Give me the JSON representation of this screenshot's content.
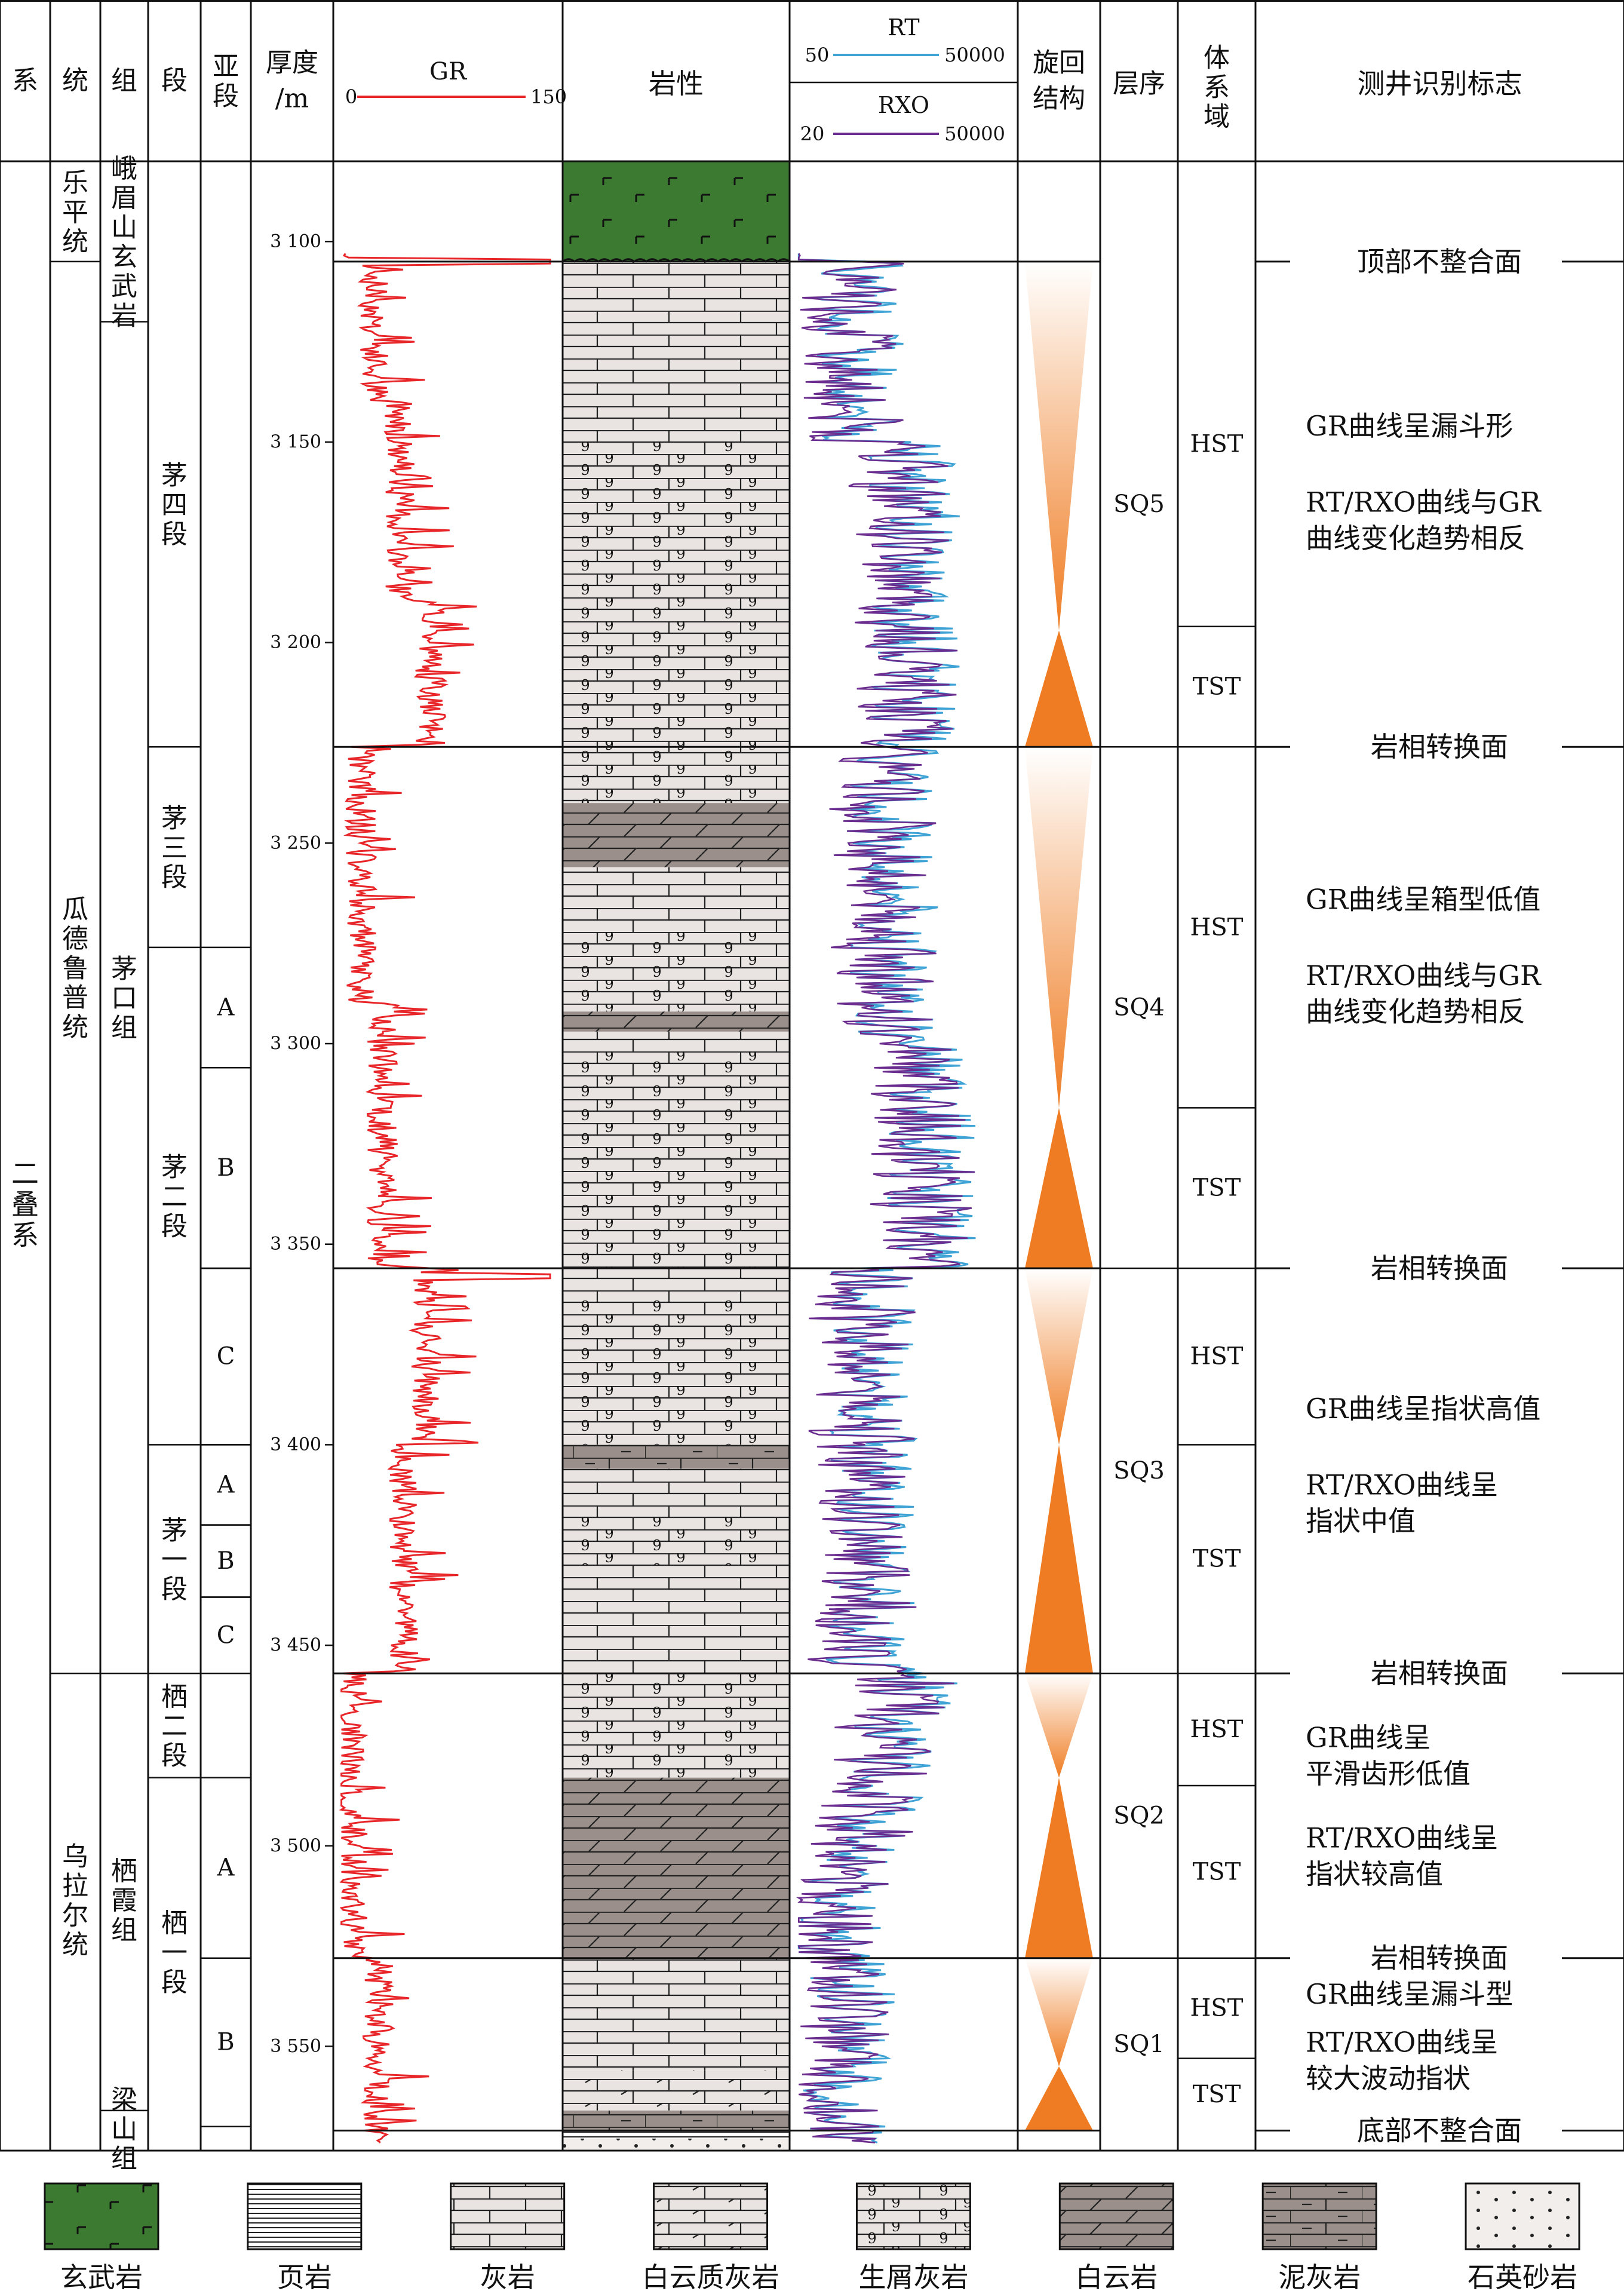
{
  "headers": {
    "system": "系",
    "series": "统",
    "formation": "组",
    "member": "段",
    "submember": "亚段",
    "thickness": "厚度/m",
    "gr": {
      "name": "GR",
      "min": "0",
      "max": "150"
    },
    "lithology": "岩性",
    "rt": {
      "name": "RT",
      "min": "50",
      "max": "50000"
    },
    "rxo": {
      "name": "RXO",
      "min": "20",
      "max": "50000"
    },
    "cycle": "旋回结构",
    "sequence": "层序",
    "systems_tract": "体系域",
    "log_markers": "测井识别标志"
  },
  "system_name": "二叠系",
  "series_units": [
    {
      "name": "乐平统",
      "top": 3080,
      "bottom": 3105
    },
    {
      "name": "瓜德鲁普统",
      "top": 3105,
      "bottom": 3457
    },
    {
      "name": "乌拉尔统",
      "top": 3457,
      "bottom": 3570
    }
  ],
  "formation_units": [
    {
      "name": "峨眉山玄武岩",
      "top": 3080,
      "bottom": 3120
    },
    {
      "name": "茅口组",
      "top": 3120,
      "bottom": 3457
    },
    {
      "name": "栖霞组",
      "top": 3457,
      "bottom": 3570
    },
    {
      "name": "梁山组",
      "top": 3566,
      "bottom": 3575
    }
  ],
  "member_units": [
    {
      "name": "茅四段",
      "top": 3105,
      "bottom": 3226
    },
    {
      "name": "茅三段",
      "top": 3226,
      "bottom": 3276
    },
    {
      "name": "茅二段",
      "top": 3276,
      "bottom": 3400
    },
    {
      "name": "茅一段",
      "top": 3400,
      "bottom": 3457
    },
    {
      "name": "栖二段",
      "top": 3457,
      "bottom": 3483
    },
    {
      "name": "栖一段",
      "top": 3483,
      "bottom": 3570
    }
  ],
  "submember_units": [
    {
      "name": "A",
      "top": 3276,
      "bottom": 3306
    },
    {
      "name": "B",
      "top": 3306,
      "bottom": 3356
    },
    {
      "name": "C",
      "top": 3356,
      "bottom": 3400
    },
    {
      "name": "A",
      "top": 3400,
      "bottom": 3420
    },
    {
      "name": "B",
      "top": 3420,
      "bottom": 3438
    },
    {
      "name": "C",
      "top": 3438,
      "bottom": 3457
    },
    {
      "name": "A",
      "top": 3483,
      "bottom": 3528
    },
    {
      "name": "B",
      "top": 3528,
      "bottom": 3570
    }
  ],
  "depth_ticks": [
    {
      "depth": 3100,
      "label": "3 100"
    },
    {
      "depth": 3150,
      "label": "3 150"
    },
    {
      "depth": 3200,
      "label": "3 200"
    },
    {
      "depth": 3250,
      "label": "3 250"
    },
    {
      "depth": 3300,
      "label": "3 300"
    },
    {
      "depth": 3350,
      "label": "3 350"
    },
    {
      "depth": 3400,
      "label": "3 400"
    },
    {
      "depth": 3450,
      "label": "3 450"
    },
    {
      "depth": 3500,
      "label": "3 500"
    },
    {
      "depth": 3550,
      "label": "3 550"
    }
  ],
  "lithology_intervals": [
    {
      "type": "basalt",
      "top": 3080,
      "bottom": 3105
    },
    {
      "type": "limestone",
      "top": 3105,
      "bottom": 3150
    },
    {
      "type": "bioclastic",
      "top": 3150,
      "bottom": 3240
    },
    {
      "type": "dolomite",
      "top": 3240,
      "bottom": 3256
    },
    {
      "type": "limestone",
      "top": 3256,
      "bottom": 3272
    },
    {
      "type": "bioclastic",
      "top": 3272,
      "bottom": 3292
    },
    {
      "type": "dolomite",
      "top": 3292,
      "bottom": 3297
    },
    {
      "type": "limestone",
      "top": 3297,
      "bottom": 3302
    },
    {
      "type": "bioclastic",
      "top": 3302,
      "bottom": 3356
    },
    {
      "type": "limestone",
      "top": 3356,
      "bottom": 3364
    },
    {
      "type": "bioclastic",
      "top": 3364,
      "bottom": 3400
    },
    {
      "type": "marl",
      "top": 3400,
      "bottom": 3406
    },
    {
      "type": "limestone",
      "top": 3406,
      "bottom": 3418
    },
    {
      "type": "bioclastic",
      "top": 3418,
      "bottom": 3430
    },
    {
      "type": "limestone",
      "top": 3430,
      "bottom": 3457
    },
    {
      "type": "bioclastic",
      "top": 3457,
      "bottom": 3483
    },
    {
      "type": "dolomite",
      "top": 3483,
      "bottom": 3528
    },
    {
      "type": "limestone",
      "top": 3528,
      "bottom": 3556
    },
    {
      "type": "dolomitic-limestone",
      "top": 3556,
      "bottom": 3566
    },
    {
      "type": "marl",
      "top": 3566,
      "bottom": 3571
    },
    {
      "type": "shale",
      "top": 3571,
      "bottom": 3573
    },
    {
      "type": "sandstone",
      "top": 3573,
      "bottom": 3576
    }
  ],
  "cycles": [
    {
      "top": 3105,
      "turn": 3197,
      "bottom": 3226
    },
    {
      "top": 3226,
      "turn": 3316,
      "bottom": 3356
    },
    {
      "top": 3356,
      "turn": 3400,
      "bottom": 3457
    },
    {
      "top": 3457,
      "turn": 3483,
      "bottom": 3528
    },
    {
      "top": 3528,
      "turn": 3555,
      "bottom": 3571
    }
  ],
  "sequences": [
    {
      "name": "SQ5",
      "top": 3105,
      "bottom": 3226
    },
    {
      "name": "SQ4",
      "top": 3226,
      "bottom": 3356
    },
    {
      "name": "SQ3",
      "top": 3356,
      "bottom": 3457
    },
    {
      "name": "SQ2",
      "top": 3457,
      "bottom": 3528
    },
    {
      "name": "SQ1",
      "top": 3528,
      "bottom": 3571
    }
  ],
  "systems_tracts": [
    {
      "name": "HST",
      "top": 3105,
      "bottom": 3196
    },
    {
      "name": "TST",
      "top": 3196,
      "bottom": 3226
    },
    {
      "name": "HST",
      "top": 3226,
      "bottom": 3316
    },
    {
      "name": "TST",
      "top": 3316,
      "bottom": 3356
    },
    {
      "name": "HST",
      "top": 3356,
      "bottom": 3400
    },
    {
      "name": "TST",
      "top": 3400,
      "bottom": 3457
    },
    {
      "name": "HST",
      "top": 3457,
      "bottom": 3485
    },
    {
      "name": "TST",
      "top": 3485,
      "bottom": 3528
    },
    {
      "name": "HST",
      "top": 3528,
      "bottom": 3553
    },
    {
      "name": "TST",
      "top": 3553,
      "bottom": 3571
    }
  ],
  "boundaries": [
    {
      "label": "顶部不整合面",
      "depth": 3105
    },
    {
      "label": "岩相转换面",
      "depth": 3226
    },
    {
      "label": "岩相转换面",
      "depth": 3356
    },
    {
      "label": "岩相转换面",
      "depth": 3457
    },
    {
      "label": "岩相转换面",
      "depth": 3528
    },
    {
      "label": "底部不整合面",
      "depth": 3571
    }
  ],
  "markers": [
    {
      "depth": 3146,
      "text": "GR曲线呈漏斗形"
    },
    {
      "depth": 3165,
      "text": "RT/RXO曲线与GR"
    },
    {
      "depth": 3174,
      "text": "曲线变化趋势相反"
    },
    {
      "depth": 3264,
      "text": "GR曲线呈箱型低值"
    },
    {
      "depth": 3283,
      "text": "RT/RXO曲线与GR"
    },
    {
      "depth": 3292,
      "text": "曲线变化趋势相反"
    },
    {
      "depth": 3391,
      "text": "GR曲线呈指状高值"
    },
    {
      "depth": 3410,
      "text": "RT/RXO曲线呈"
    },
    {
      "depth": 3419,
      "text": "指状中值"
    },
    {
      "depth": 3473,
      "text": "GR曲线呈"
    },
    {
      "depth": 3482,
      "text": "平滑齿形低值"
    },
    {
      "depth": 3498,
      "text": "RT/RXO曲线呈"
    },
    {
      "depth": 3507,
      "text": "指状较高值"
    },
    {
      "depth": 3537,
      "text": "GR曲线呈漏斗型"
    },
    {
      "depth": 3549,
      "text": "RT/RXO曲线呈"
    },
    {
      "depth": 3558,
      "text": "较大波动指状"
    }
  ],
  "legend": [
    {
      "key": "basalt",
      "label": "玄武岩"
    },
    {
      "key": "shale",
      "label": "页岩"
    },
    {
      "key": "limestone",
      "label": "灰岩"
    },
    {
      "key": "dolomitic-limestone",
      "label": "白云质灰岩"
    },
    {
      "key": "bioclastic",
      "label": "生屑灰岩"
    },
    {
      "key": "dolomite",
      "label": "白云岩"
    },
    {
      "key": "marl",
      "label": "泥灰岩"
    },
    {
      "key": "sandstone",
      "label": "石英砂岩"
    }
  ],
  "colors": {
    "gr": "#e8262a",
    "rt": "#3fa3d6",
    "rxo": "#6a2c8e",
    "boundary_label": "#d6282e",
    "marker_text": "#1f7fb8",
    "cycle": "#ef7c22",
    "basalt": "#3c7a32",
    "dolomite": "#9a8f8a",
    "limestone": "#e9e4e1"
  }
}
